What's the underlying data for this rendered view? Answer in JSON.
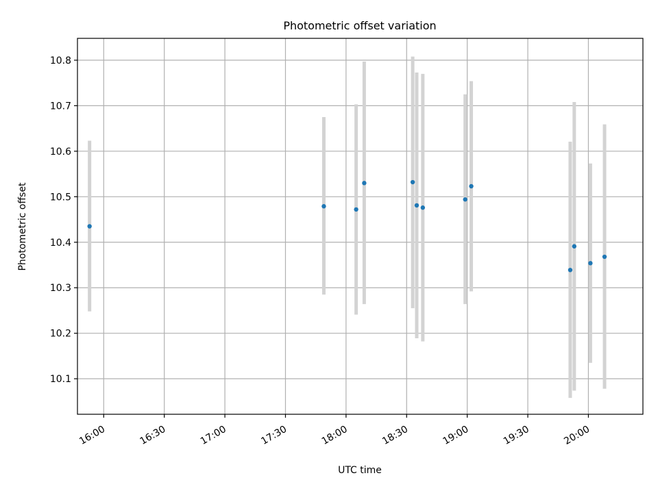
{
  "chart_data": {
    "type": "scatter",
    "title": "Photometric offset variation",
    "xlabel": "UTC time",
    "ylabel": "Photometric offset",
    "x_ticks": [
      "16:00",
      "16:30",
      "17:00",
      "17:30",
      "18:00",
      "18:30",
      "19:00",
      "19:30",
      "20:00"
    ],
    "y_ticks": [
      "10.1",
      "10.2",
      "10.3",
      "10.4",
      "10.5",
      "10.6",
      "10.7",
      "10.8"
    ],
    "xlim": [
      "15:47",
      "20:27"
    ],
    "ylim": [
      10.022,
      10.848
    ],
    "grid": true,
    "colors": {
      "point": "#1f77b4",
      "errorbar": "#d3d3d3",
      "grid": "#b0b0b0"
    },
    "series": [
      {
        "points": [
          {
            "x": "15:53",
            "y": 10.435,
            "ylow": 10.248,
            "yhigh": 10.623
          },
          {
            "x": "17:49",
            "y": 10.479,
            "ylow": 10.285,
            "yhigh": 10.675
          },
          {
            "x": "18:05",
            "y": 10.472,
            "ylow": 10.241,
            "yhigh": 10.703
          },
          {
            "x": "18:09",
            "y": 10.53,
            "ylow": 10.264,
            "yhigh": 10.797
          },
          {
            "x": "18:33",
            "y": 10.532,
            "ylow": 10.255,
            "yhigh": 10.808
          },
          {
            "x": "18:35",
            "y": 10.481,
            "ylow": 10.189,
            "yhigh": 10.773
          },
          {
            "x": "18:38",
            "y": 10.476,
            "ylow": 10.182,
            "yhigh": 10.77
          },
          {
            "x": "18:59",
            "y": 10.494,
            "ylow": 10.264,
            "yhigh": 10.725
          },
          {
            "x": "19:02",
            "y": 10.523,
            "ylow": 10.292,
            "yhigh": 10.754
          },
          {
            "x": "19:51",
            "y": 10.339,
            "ylow": 10.058,
            "yhigh": 10.621
          },
          {
            "x": "19:53",
            "y": 10.391,
            "ylow": 10.074,
            "yhigh": 10.708
          },
          {
            "x": "20:01",
            "y": 10.354,
            "ylow": 10.135,
            "yhigh": 10.573
          },
          {
            "x": "20:08",
            "y": 10.368,
            "ylow": 10.078,
            "yhigh": 10.659
          }
        ]
      }
    ]
  }
}
